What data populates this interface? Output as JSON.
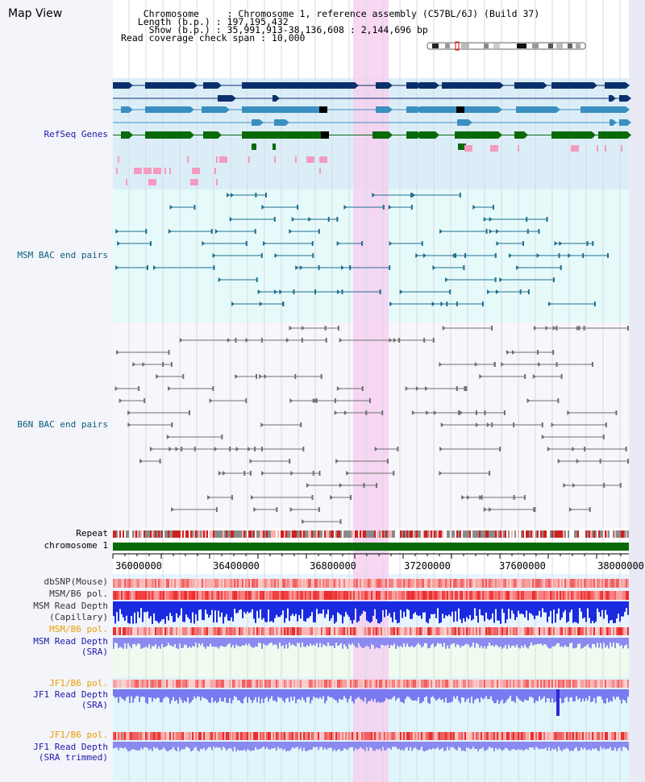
{
  "header": {
    "title": "Map View",
    "info_lines": [
      "    Chromosome     : Chromosome 1, reference assembly (C57BL/6J) (Build 37)",
      "   Length (b.p.) : 197,195,432",
      "     Show (b.p.) : 35,991,913-38,136,608 : 2,144,696 bp",
      "Read coverage check span : 10,000"
    ]
  },
  "tracks": {
    "refseq": {
      "label": "RefSeq Genes",
      "color": "#1a1aa6"
    },
    "msm_bac": {
      "label": "MSM BAC end pairs",
      "color": "#0a5f7a"
    },
    "b6n_bac": {
      "label": "B6N BAC end pairs",
      "color": "#0a5f7a"
    },
    "repeat": {
      "label": "Repeat"
    },
    "chromosome": {
      "label": "chromosome 1"
    },
    "dbsnp": {
      "label": "dbSNP(Mouse)"
    },
    "msm_b6_pol": {
      "label": "MSM/B6 pol."
    },
    "msm_depth_cap": {
      "label_1": "MSM Read Depth",
      "label_2": "(Capillary)"
    },
    "msm_b6_pol2": {
      "label": "MSM/B6 pol.",
      "color": "#e8a000"
    },
    "msm_depth_sra": {
      "label_1": "MSM Read Depth",
      "label_2": "(SRA)",
      "color": "#1a1aa6"
    },
    "jf1_b6_pol": {
      "label": "JF1/B6 pol.",
      "color": "#e8a000"
    },
    "jf1_depth_sra": {
      "label_1": "JF1 Read Depth",
      "label_2": "(SRA)",
      "color": "#1a1aa6"
    },
    "jf1_b6_pol2": {
      "label": "JF1/B6 pol.",
      "color": "#e8a000"
    },
    "jf1_depth_trim": {
      "label_1": "JF1 Read Depth",
      "label_2": "(SRA trimmed)",
      "color": "#1a1aa6"
    }
  },
  "axis": {
    "ticks": [
      "36000000",
      "36400000",
      "36800000",
      "37200000",
      "37600000",
      "38000000"
    ]
  },
  "colors": {
    "highlight": "#f6d0f0",
    "refseq_dark": "#0b2f6b",
    "refseq_mid": "#3b8fc0",
    "refseq_green": "#0a6a0a",
    "snp_red": "#e83030"
  }
}
